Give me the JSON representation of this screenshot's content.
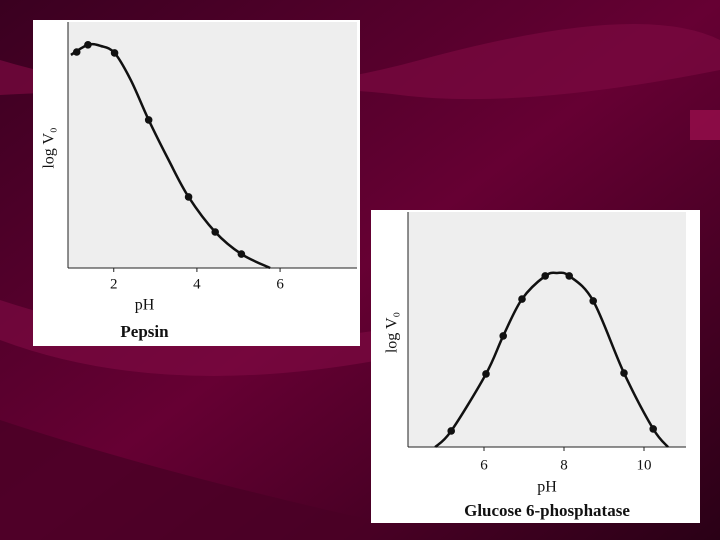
{
  "chart_data": [
    {
      "type": "scatter",
      "title": "Pepsin",
      "x_label": "pH",
      "y_label": "log V₀",
      "x": [
        1.11,
        1.38,
        2.02,
        2.84,
        3.8,
        4.44,
        5.07
      ],
      "values": [
        9.0,
        9.3,
        8.96,
        6.17,
        2.96,
        1.5,
        0.58
      ],
      "curve_x": [
        0.97,
        1.38,
        1.69,
        2.02,
        2.41,
        2.84,
        3.32,
        3.8,
        4.44,
        5.07,
        5.76
      ],
      "curve_y": [
        8.88,
        9.3,
        9.25,
        8.96,
        7.83,
        6.17,
        4.5,
        2.96,
        1.5,
        0.58,
        0
      ],
      "color": "#111111",
      "xlim": [
        0.9,
        7.85
      ],
      "ylim": [
        0,
        10
      ],
      "xticks": [
        2,
        4,
        6
      ]
    },
    {
      "type": "scatter",
      "title": "Glucose 6-phosphatase",
      "x_label": "pH",
      "y_label": "log V₀",
      "x": [
        5.18,
        6.05,
        6.48,
        6.95,
        7.53,
        8.13,
        8.73,
        9.5,
        10.23
      ],
      "values": [
        0.7,
        3.19,
        4.85,
        6.46,
        7.47,
        7.47,
        6.38,
        3.23,
        0.79
      ],
      "curve_x": [
        4.78,
        5.18,
        6.05,
        6.48,
        6.95,
        7.53,
        7.83,
        8.13,
        8.73,
        9.5,
        10.23,
        10.6
      ],
      "curve_y": [
        0,
        0.7,
        3.19,
        4.85,
        6.46,
        7.47,
        7.6,
        7.47,
        6.38,
        3.23,
        0.79,
        0
      ],
      "color": "#111111",
      "xlim": [
        4.1,
        11.05
      ],
      "ylim": [
        0,
        10
      ],
      "xticks": [
        6,
        8,
        10
      ]
    }
  ]
}
